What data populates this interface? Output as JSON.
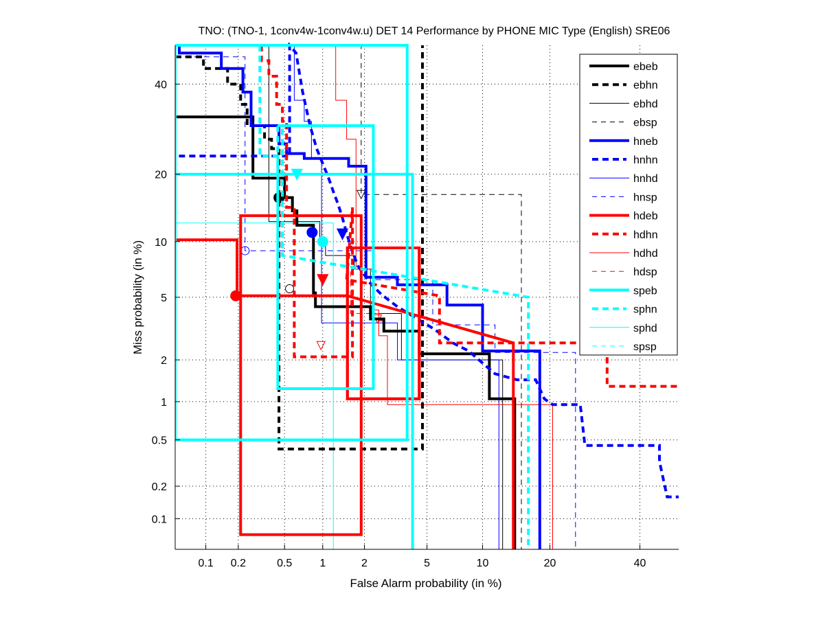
{
  "chart_data": {
    "type": "line",
    "title": "TNO: (TNO-1, 1conv4w-1conv4w.u) DET 14 Performance by PHONE MIC Type (English) SRE06",
    "xlabel": "False Alarm probability (in %)",
    "ylabel": "Miss probability (in %)",
    "xscale": "normal-deviate",
    "yscale": "normal-deviate",
    "xlim": [
      0.05,
      50
    ],
    "ylim": [
      0.05,
      50
    ],
    "xticks": [
      0.1,
      0.2,
      0.5,
      1,
      2,
      5,
      10,
      20,
      40
    ],
    "xtick_labels": [
      "0.1",
      "0.2",
      "0.5",
      "1",
      "2",
      "5",
      "10",
      "20",
      "40"
    ],
    "yticks": [
      0.1,
      0.2,
      0.5,
      1,
      2,
      5,
      10,
      20,
      40
    ],
    "ytick_labels": [
      "0.1",
      "0.2",
      "0.5",
      "1",
      "2",
      "5",
      "10",
      "20",
      "40"
    ],
    "grid": true,
    "legend_position": "top-right",
    "series": [
      {
        "name": "ebeb",
        "color": "#000000",
        "style": "solid-thick",
        "points": [
          [
            0.05,
            32
          ],
          [
            0.27,
            32
          ],
          [
            0.27,
            19.3
          ],
          [
            0.5,
            19.3
          ],
          [
            0.5,
            16
          ],
          [
            0.58,
            16
          ],
          [
            0.58,
            14
          ],
          [
            0.63,
            14
          ],
          [
            0.63,
            12
          ],
          [
            0.85,
            12
          ],
          [
            0.85,
            5.3
          ],
          [
            0.88,
            5.3
          ],
          [
            0.88,
            4.4
          ],
          [
            2.2,
            4.4
          ],
          [
            2.2,
            3.7
          ],
          [
            2.7,
            3.7
          ],
          [
            2.7,
            3.1
          ],
          [
            4.5,
            3.1
          ],
          [
            4.5,
            2.2
          ],
          [
            10.8,
            2.2
          ],
          [
            10.8,
            1.05
          ],
          [
            14.2,
            1.05
          ],
          [
            14.2,
            0.05
          ]
        ],
        "marker_point": [
          0.45,
          16
        ],
        "marker": "circle"
      },
      {
        "name": "ebhn",
        "color": "#000000",
        "style": "dash-thick",
        "points": [
          [
            0.05,
            47
          ],
          [
            0.095,
            47
          ],
          [
            0.095,
            44
          ],
          [
            0.16,
            44
          ],
          [
            0.16,
            40
          ],
          [
            0.21,
            40
          ],
          [
            0.21,
            35
          ],
          [
            0.24,
            35
          ],
          [
            0.24,
            30
          ],
          [
            0.34,
            30
          ],
          [
            0.34,
            27
          ],
          [
            0.39,
            27
          ],
          [
            0.39,
            25
          ],
          [
            0.45,
            25
          ],
          [
            0.45,
            0.42
          ],
          [
            4.7,
            0.42
          ],
          [
            4.7,
            50
          ]
        ],
        "rect_note": "box [0.45..4.7]x[0.42..50]"
      },
      {
        "name": "ebhd",
        "color": "#000000",
        "style": "solid-thin",
        "points": [
          [
            0.37,
            50
          ],
          [
            0.37,
            12.5
          ],
          [
            0.95,
            12.5
          ],
          [
            0.95,
            9.8
          ],
          [
            1.05,
            9.8
          ],
          [
            1.05,
            8.5
          ],
          [
            1.7,
            8.5
          ],
          [
            1.7,
            7.2
          ],
          [
            2.2,
            7.2
          ],
          [
            2.2,
            4.0
          ],
          [
            3.5,
            4.0
          ],
          [
            3.5,
            2.0
          ],
          [
            12.5,
            2.0
          ],
          [
            12.5,
            0.05
          ]
        ],
        "marker_point": [
          0.55,
          5.6
        ],
        "marker": "circle"
      },
      {
        "name": "ebsp",
        "color": "#000000",
        "style": "dash-thin",
        "points": [
          [
            1.35,
            50
          ],
          [
            1.9,
            50
          ],
          [
            1.9,
            16.5
          ],
          [
            15.2,
            16.5
          ],
          [
            15.2,
            0.05
          ]
        ],
        "marker_point": [
          1.9,
          16.5
        ],
        "marker": "triangle"
      },
      {
        "name": "hneb",
        "color": "#0000ff",
        "style": "solid-thick",
        "points": [
          [
            0.055,
            50
          ],
          [
            0.055,
            48
          ],
          [
            0.14,
            48
          ],
          [
            0.14,
            44
          ],
          [
            0.22,
            44
          ],
          [
            0.22,
            38
          ],
          [
            0.26,
            38
          ],
          [
            0.26,
            30
          ],
          [
            0.45,
            30
          ],
          [
            0.45,
            26
          ],
          [
            0.52,
            26
          ],
          [
            0.52,
            24
          ],
          [
            0.72,
            24
          ],
          [
            0.72,
            23
          ],
          [
            1.55,
            23
          ],
          [
            1.55,
            21.5
          ],
          [
            2.05,
            21.5
          ],
          [
            2.05,
            6.5
          ],
          [
            3.3,
            6.5
          ],
          [
            3.3,
            5.9
          ],
          [
            6.5,
            5.9
          ],
          [
            6.5,
            4.5
          ],
          [
            10.0,
            4.5
          ],
          [
            10.0,
            2.3
          ],
          [
            18.2,
            2.3
          ],
          [
            18.2,
            0.05
          ]
        ],
        "marker_point": [
          0.83,
          11.1
        ],
        "marker": "circle"
      },
      {
        "name": "hnhn",
        "color": "#0000ff",
        "style": "dash-thick",
        "points": [
          [
            0.05,
            3.8
          ],
          [
            0.05,
            23.5
          ],
          [
            0.55,
            23.5
          ],
          [
            0.55,
            50
          ],
          [
            0.62,
            48
          ],
          [
            0.7,
            38
          ],
          [
            0.8,
            30
          ],
          [
            0.9,
            25
          ],
          [
            1.0,
            22
          ],
          [
            1.1,
            19.5
          ],
          [
            1.2,
            17
          ],
          [
            1.3,
            15
          ],
          [
            1.4,
            13
          ],
          [
            1.5,
            11
          ],
          [
            1.6,
            9.5
          ],
          [
            1.8,
            7.5
          ],
          [
            2.2,
            6.0
          ],
          [
            2.6,
            5.2
          ],
          [
            3.3,
            4.4
          ],
          [
            4.2,
            3.8
          ],
          [
            5.5,
            3.2
          ],
          [
            7.0,
            2.6
          ],
          [
            8.5,
            2.3
          ],
          [
            10.0,
            1.9
          ],
          [
            11.5,
            1.6
          ],
          [
            14.5,
            1.45
          ],
          [
            17.5,
            1.45
          ],
          [
            19.0,
            1.05
          ],
          [
            20.5,
            0.95
          ],
          [
            26,
            0.95
          ],
          [
            27,
            0.45
          ],
          [
            45,
            0.45
          ],
          [
            45,
            0.33
          ],
          [
            47,
            0.16
          ],
          [
            50,
            0.16
          ]
        ],
        "marker_point": [
          1.4,
          10.9
        ],
        "marker": "triangle"
      },
      {
        "name": "hnhd",
        "color": "#0000ff",
        "style": "solid-thin",
        "points": [
          [
            0.6,
            50
          ],
          [
            0.6,
            36
          ],
          [
            0.72,
            36
          ],
          [
            0.72,
            31
          ],
          [
            0.82,
            31
          ],
          [
            0.82,
            23
          ],
          [
            0.98,
            23
          ],
          [
            0.98,
            3.5
          ],
          [
            3.3,
            3.5
          ],
          [
            3.3,
            2.0
          ],
          [
            12.0,
            2.0
          ],
          [
            12.0,
            0.05
          ]
        ]
      },
      {
        "name": "hnsp",
        "color": "#0000ff",
        "style": "dash-thin",
        "points": [
          [
            0.05,
            47
          ],
          [
            0.23,
            47
          ],
          [
            0.23,
            11
          ],
          [
            0.23,
            9
          ],
          [
            2.3,
            9
          ],
          [
            2.3,
            6.3
          ],
          [
            5.4,
            6.3
          ],
          [
            5.4,
            3.4
          ],
          [
            11.5,
            3.4
          ],
          [
            11.5,
            2.25
          ],
          [
            25,
            2.25
          ],
          [
            25,
            0.05
          ]
        ],
        "marker_point": [
          0.23,
          9
        ],
        "marker": "circle"
      },
      {
        "name": "hdeb",
        "color": "#ff0000",
        "style": "solid-thick",
        "points": [
          [
            0.05,
            10.2
          ],
          [
            0.195,
            10.2
          ],
          [
            0.195,
            5.1
          ],
          [
            1.52,
            5.1
          ],
          [
            1.52,
            9.3
          ],
          [
            4.5,
            9.3
          ],
          [
            4.5,
            1.05
          ],
          [
            1.52,
            1.05
          ],
          [
            1.52,
            5.1
          ],
          [
            14.0,
            2.6
          ],
          [
            14.0,
            0.05
          ]
        ],
        "marker_point": [
          0.19,
          5.1
        ],
        "marker": "circle",
        "boxes": [
          [
            0.21,
            0.07,
            1.9,
            13.3
          ],
          [
            1.52,
            1.05,
            4.5,
            9.3
          ]
        ]
      },
      {
        "name": "hdhn",
        "color": "#ff0000",
        "style": "dash-thick",
        "points": [
          [
            0.32,
            50
          ],
          [
            0.32,
            46
          ],
          [
            0.37,
            46
          ],
          [
            0.37,
            42
          ],
          [
            0.43,
            42
          ],
          [
            0.43,
            35
          ],
          [
            0.48,
            35
          ],
          [
            0.48,
            31
          ],
          [
            0.52,
            31
          ],
          [
            0.52,
            14.5
          ],
          [
            0.6,
            14.5
          ],
          [
            0.6,
            2.1
          ],
          [
            1.65,
            2.1
          ],
          [
            1.65,
            14.5
          ],
          [
            1.5,
            6.3
          ],
          [
            5.9,
            5.1
          ],
          [
            5.9,
            2.6
          ],
          [
            32,
            2.6
          ],
          [
            32,
            1.3
          ],
          [
            50,
            1.3
          ]
        ],
        "marker_point": [
          1.0,
          6.3
        ],
        "marker": "triangle"
      },
      {
        "name": "hdhd",
        "color": "#ff0000",
        "style": "solid-thin",
        "points": [
          [
            1.25,
            50
          ],
          [
            1.25,
            36
          ],
          [
            1.5,
            36
          ],
          [
            1.5,
            27
          ],
          [
            1.75,
            27
          ],
          [
            1.75,
            7.2
          ],
          [
            2.3,
            7.2
          ],
          [
            2.3,
            4.2
          ],
          [
            2.5,
            4.2
          ],
          [
            2.5,
            2.9
          ],
          [
            2.85,
            2.9
          ],
          [
            2.85,
            0.95
          ],
          [
            20.5,
            0.95
          ],
          [
            20.5,
            0.05
          ]
        ],
        "marker_point": [
          0.97,
          2.5
        ],
        "marker": "triangle"
      },
      {
        "name": "hdsp",
        "color": "#ff0000",
        "style": "dash-thin",
        "points": [
          [
            1.6,
            7.0
          ],
          [
            1.6,
            4.0
          ],
          [
            2.5,
            4.0
          ],
          [
            2.5,
            3.6
          ],
          [
            2.7,
            3.6
          ]
        ],
        "marker_point": [
          2.45,
          3.7
        ],
        "marker": "triangle"
      },
      {
        "name": "speb",
        "color": "#00ffff",
        "style": "solid-thick",
        "points": [
          [
            0.05,
            20
          ],
          [
            4.1,
            20
          ],
          [
            4.1,
            0.05
          ]
        ],
        "marker_point": [
          0.63,
          20
        ],
        "marker": "triangle",
        "boxes": [
          [
            0.05,
            0.5,
            3.8,
            50
          ]
        ]
      },
      {
        "name": "sphn",
        "color": "#00ffff",
        "style": "dash-thick",
        "points": [
          [
            0.31,
            50
          ],
          [
            0.31,
            23.5
          ],
          [
            0.44,
            23.5
          ],
          [
            0.44,
            1.25
          ],
          [
            2.3,
            1.25
          ],
          [
            2.3,
            30
          ],
          [
            0.48,
            30
          ],
          [
            0.48,
            8.5
          ],
          [
            16.3,
            5.0
          ],
          [
            16.3,
            0.05
          ]
        ],
        "marker_point": [
          1.0,
          10
        ],
        "marker": "circle",
        "boxes": [
          [
            0.44,
            1.25,
            2.3,
            30
          ]
        ]
      },
      {
        "name": "sphd",
        "color": "#00ffff",
        "style": "solid-thin",
        "points": [
          [
            0.05,
            12.3
          ],
          [
            1.2,
            12.3
          ],
          [
            1.2,
            0.05
          ]
        ]
      },
      {
        "name": "spsp",
        "color": "#00ffff",
        "style": "dash-thin",
        "points": []
      }
    ]
  },
  "legend": {
    "entries": [
      "ebeb",
      "ebhn",
      "ebhd",
      "ebsp",
      "hneb",
      "hnhn",
      "hnhd",
      "hnsp",
      "hdeb",
      "hdhn",
      "hdhd",
      "hdsp",
      "speb",
      "sphn",
      "sphd",
      "spsp"
    ]
  }
}
